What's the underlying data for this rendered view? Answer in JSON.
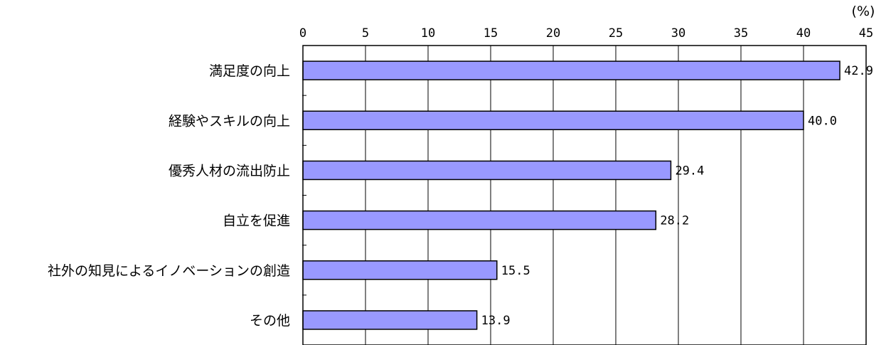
{
  "chart_data": {
    "type": "bar",
    "orientation": "horizontal",
    "unit": "(%)",
    "categories": [
      "満足度の向上",
      "経験やスキルの向上",
      "優秀人材の流出防止",
      "自立を促進",
      "社外の知見によるイノベーションの創造",
      "その他"
    ],
    "values": [
      42.9,
      40.0,
      29.4,
      28.2,
      15.5,
      13.9
    ],
    "value_labels": [
      "42.9",
      "40.0",
      "29.4",
      "28.2",
      "15.5",
      "13.9"
    ],
    "xlim": [
      0,
      45
    ],
    "xticks": [
      0,
      5,
      10,
      15,
      20,
      25,
      30,
      35,
      40,
      45
    ],
    "grid": true,
    "bar_color": "#9999ff",
    "bar_border": "#000000"
  }
}
